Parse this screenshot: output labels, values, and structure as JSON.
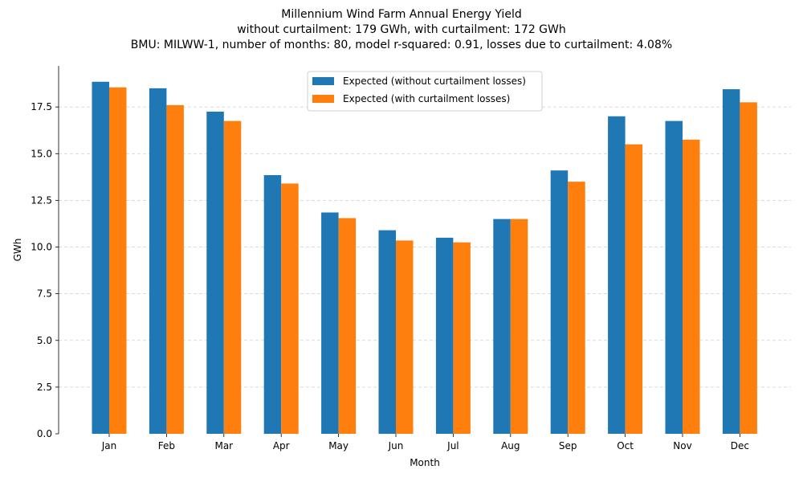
{
  "chart_data": {
    "type": "bar",
    "title": "Millennium Wind Farm Annual Energy Yield",
    "subtitle_lines": [
      "without curtailment: 179 GWh, with curtailment: 172 GWh",
      "BMU: MILWW-1, number of months: 80, model r-squared: 0.91, losses due to curtailment: 4.08%"
    ],
    "xlabel": "Month",
    "ylabel": "GWh",
    "ylim": [
      0,
      19.7
    ],
    "yticks": [
      0.0,
      2.5,
      5.0,
      7.5,
      10.0,
      12.5,
      15.0,
      17.5
    ],
    "ytick_labels": [
      "0.0",
      "2.5",
      "5.0",
      "7.5",
      "10.0",
      "12.5",
      "15.0",
      "17.5"
    ],
    "grid": "y, dashed",
    "legend_position": "top-center",
    "categories": [
      "Jan",
      "Feb",
      "Mar",
      "Apr",
      "May",
      "Jun",
      "Jul",
      "Aug",
      "Sep",
      "Oct",
      "Nov",
      "Dec"
    ],
    "series": [
      {
        "name": "Expected (without curtailment losses)",
        "color": "#1f77b4",
        "values": [
          18.85,
          18.5,
          17.25,
          13.85,
          11.85,
          10.9,
          10.5,
          11.5,
          14.1,
          17.0,
          16.75,
          18.45
        ]
      },
      {
        "name": "Expected (with curtailment losses)",
        "color": "#ff7f0e",
        "values": [
          18.55,
          17.6,
          16.75,
          13.4,
          11.55,
          10.35,
          10.25,
          11.5,
          13.5,
          15.5,
          15.75,
          17.75
        ]
      }
    ]
  }
}
